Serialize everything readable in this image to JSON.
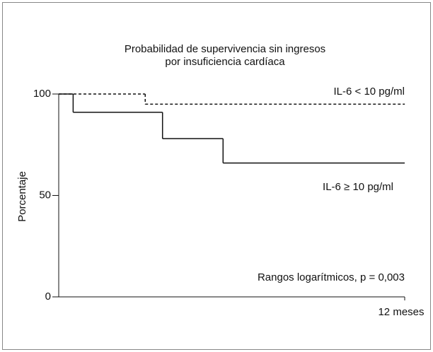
{
  "chart_data": {
    "type": "step",
    "title": [
      "Probabilidad de supervivencia sin ingresos",
      "por insuficiencia cardíaca"
    ],
    "ylabel": "Porcentaje",
    "annotation": "Rangos logarítmicos, p = 0,003",
    "xlim": [
      0,
      12
    ],
    "xticks": [
      {
        "value": 12,
        "label": "12 meses"
      }
    ],
    "ylim": [
      0,
      100
    ],
    "yticks": [
      0,
      50,
      100
    ],
    "series": [
      {
        "name": "IL-6 < 10 pg/ml",
        "color": "#111111",
        "dashed": true,
        "x": [
          0,
          3,
          12
        ],
        "values": [
          100,
          95,
          95
        ]
      },
      {
        "name": "IL-6 ≥ 10 pg/ml",
        "color": "#111111",
        "dashed": false,
        "x": [
          0,
          0.5,
          3.6,
          5.7,
          12
        ],
        "values": [
          100,
          91,
          78,
          66,
          66
        ]
      }
    ]
  }
}
